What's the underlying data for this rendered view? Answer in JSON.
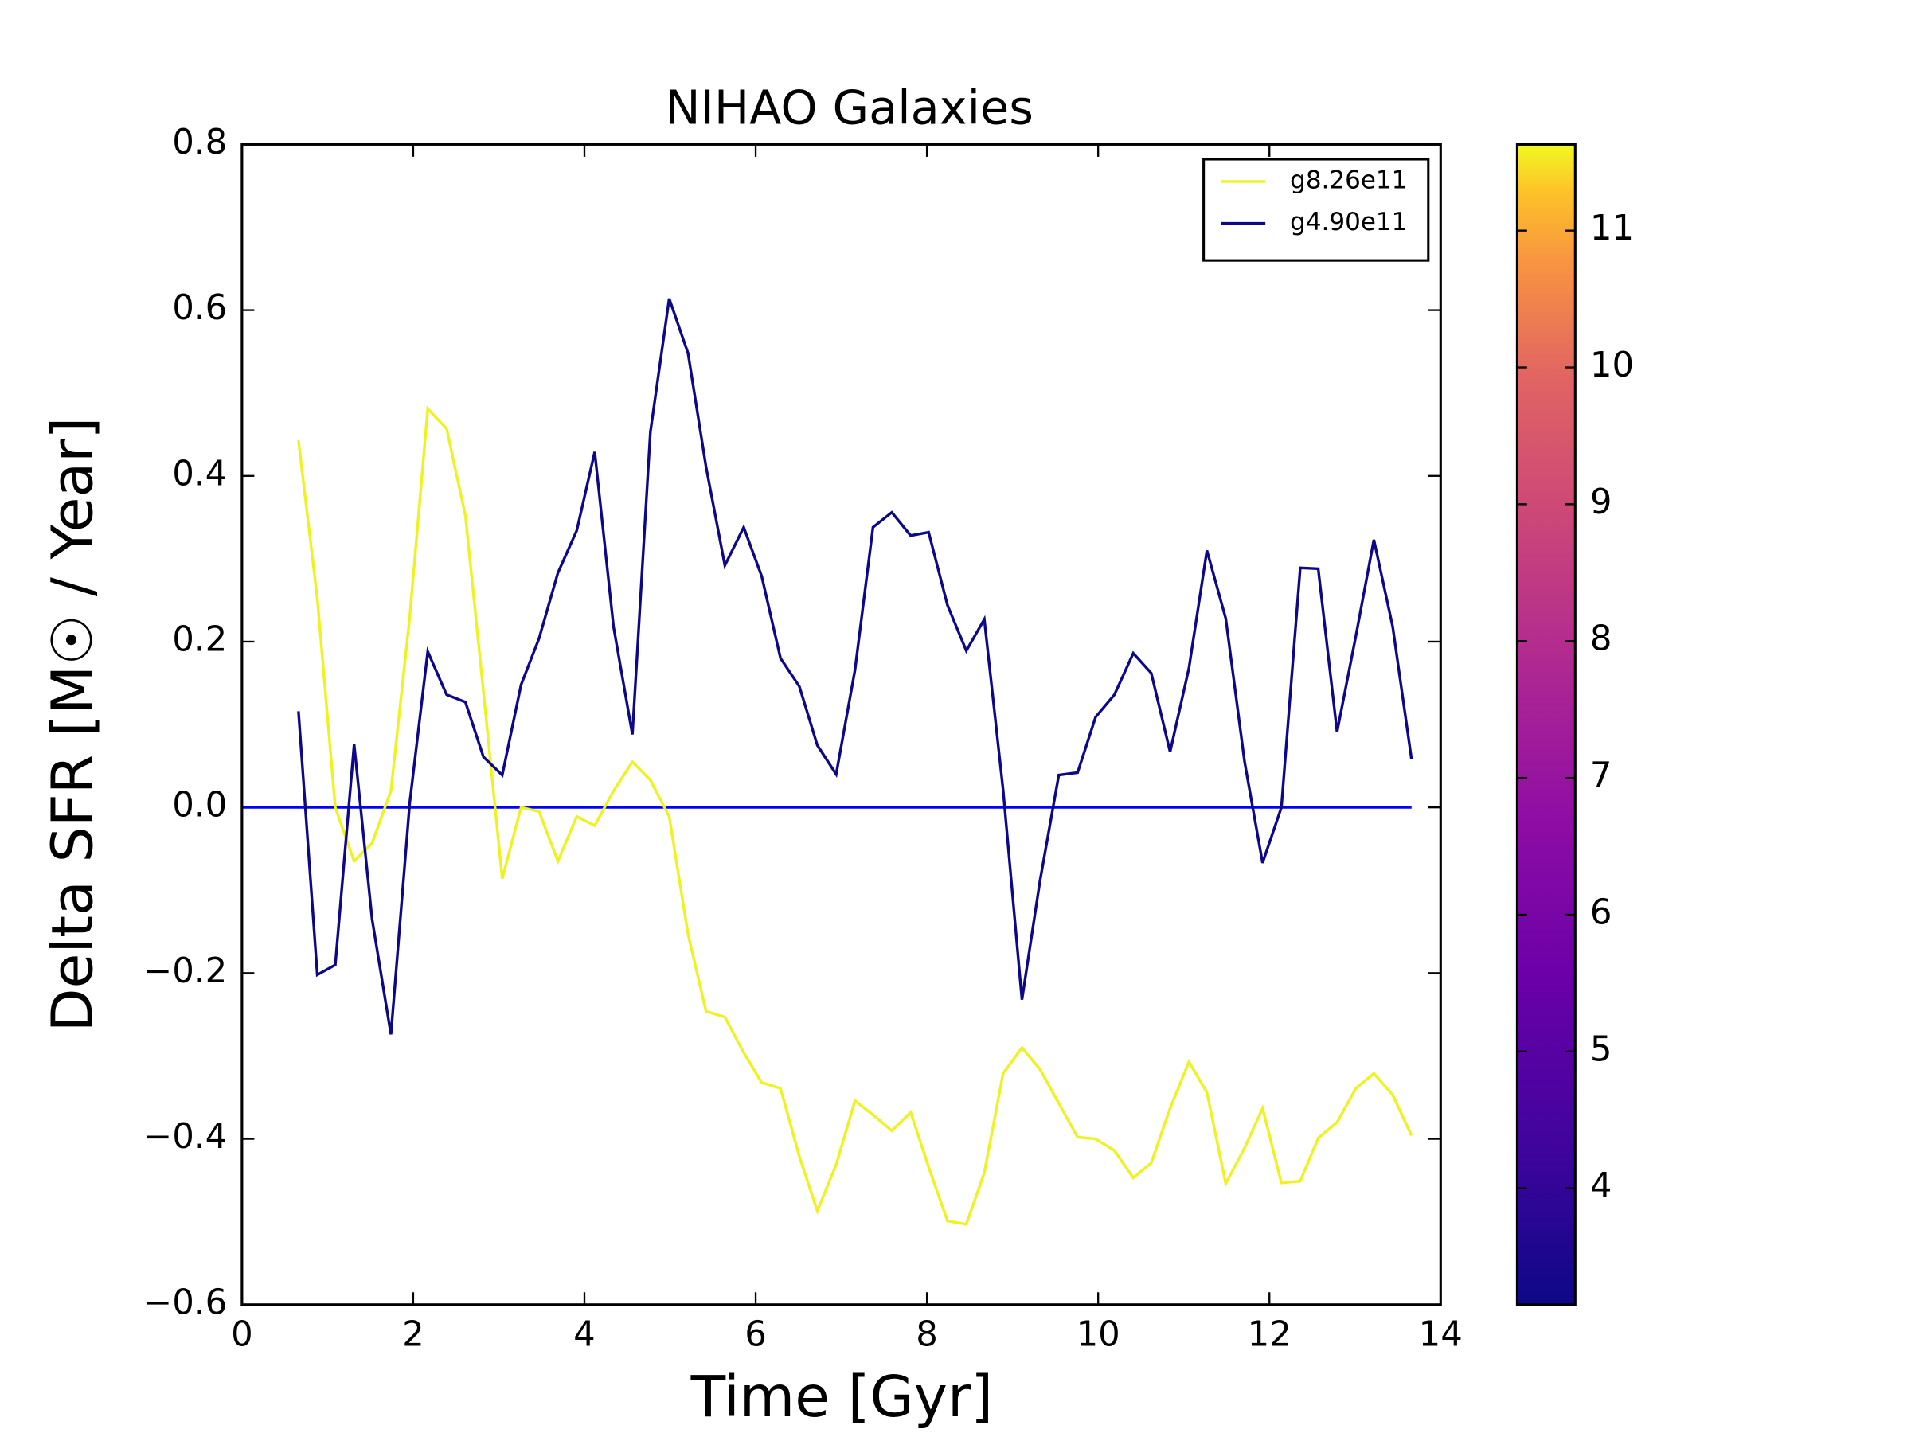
{
  "chart_data": {
    "type": "line",
    "title": "NIHAO Galaxies",
    "xlabel": "Time [Gyr]",
    "ylabel": "Delta SFR [M☉ / Year]",
    "x": [
      0.66,
      0.88,
      1.09,
      1.31,
      1.52,
      1.74,
      1.96,
      2.17,
      2.39,
      2.61,
      2.82,
      3.04,
      3.26,
      3.47,
      3.69,
      3.91,
      4.12,
      4.34,
      4.56,
      4.77,
      4.99,
      5.21,
      5.42,
      5.64,
      5.86,
      6.07,
      6.29,
      6.51,
      6.72,
      6.94,
      7.16,
      7.37,
      7.59,
      7.81,
      8.02,
      8.24,
      8.46,
      8.67,
      8.89,
      9.11,
      9.32,
      9.54,
      9.76,
      9.97,
      10.19,
      10.41,
      10.62,
      10.84,
      11.06,
      11.27,
      11.49,
      11.71,
      11.92,
      12.14,
      12.36,
      12.57,
      12.79,
      13.01,
      13.22,
      13.44,
      13.66
    ],
    "series": [
      {
        "name": "g8.26e11",
        "color": "#eef31f",
        "values": [
          0.443,
          0.252,
          0.0,
          -0.065,
          -0.043,
          0.02,
          0.23,
          0.481,
          0.457,
          0.352,
          0.14,
          -0.086,
          0.0,
          -0.005,
          -0.065,
          -0.011,
          -0.022,
          0.02,
          0.055,
          0.033,
          -0.011,
          -0.153,
          -0.246,
          -0.253,
          -0.296,
          -0.332,
          -0.339,
          -0.421,
          -0.487,
          -0.431,
          -0.354,
          -0.371,
          -0.39,
          -0.368,
          -0.434,
          -0.499,
          -0.503,
          -0.441,
          -0.321,
          -0.29,
          -0.316,
          -0.357,
          -0.398,
          -0.4,
          -0.414,
          -0.447,
          -0.429,
          -0.363,
          -0.307,
          -0.344,
          -0.454,
          -0.411,
          -0.363,
          -0.453,
          -0.451,
          -0.399,
          -0.38,
          -0.339,
          -0.321,
          -0.347,
          -0.396
        ]
      },
      {
        "name": "g4.90e11",
        "color": "#0d0887",
        "values": [
          0.116,
          -0.202,
          -0.19,
          0.076,
          -0.135,
          -0.274,
          0.006,
          0.188,
          0.136,
          0.127,
          0.061,
          0.039,
          0.148,
          0.204,
          0.283,
          0.334,
          0.429,
          0.218,
          0.088,
          0.453,
          0.614,
          0.548,
          0.411,
          0.292,
          0.338,
          0.279,
          0.18,
          0.146,
          0.075,
          0.04,
          0.166,
          0.338,
          0.356,
          0.328,
          0.332,
          0.244,
          0.189,
          0.227,
          0.021,
          -0.232,
          -0.089,
          0.039,
          0.042,
          0.109,
          0.136,
          0.186,
          0.162,
          0.067,
          0.168,
          0.31,
          0.228,
          0.055,
          -0.067,
          0.0,
          0.289,
          0.288,
          0.091,
          0.207,
          0.323,
          0.218,
          0.058
        ]
      }
    ],
    "hline": {
      "y": 0,
      "color": "#0000ff"
    },
    "xlim": [
      0,
      14
    ],
    "xticks": [
      0,
      2,
      4,
      6,
      8,
      10,
      12,
      14
    ],
    "ylim": [
      -0.6,
      0.8
    ],
    "yticks": [
      {
        "value": -0.6,
        "label": "−0.6"
      },
      {
        "value": -0.4,
        "label": "−0.4"
      },
      {
        "value": -0.2,
        "label": "−0.2"
      },
      {
        "value": 0,
        "label": "0.0"
      },
      0.2,
      0.4,
      0.6,
      0.8
    ],
    "legend": "upper right",
    "colorbar": {
      "colormap": "plasma",
      "lim": [
        3.15,
        11.63
      ],
      "ticks": [
        4,
        5,
        6,
        7,
        8,
        9,
        10,
        11
      ]
    }
  }
}
